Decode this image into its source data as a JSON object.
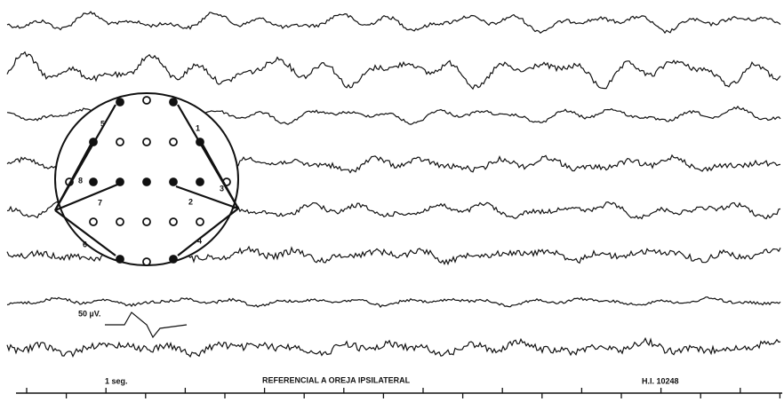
{
  "calibration": "50 µV.",
  "time_scale": "1 seg.",
  "caption": "REFERENCIAL A OREJA IPSILATERAL",
  "record_id": "H.I. 10248",
  "arrow_labels": [
    "1",
    "2",
    "3",
    "4",
    "5",
    "6",
    "7",
    "8"
  ]
}
